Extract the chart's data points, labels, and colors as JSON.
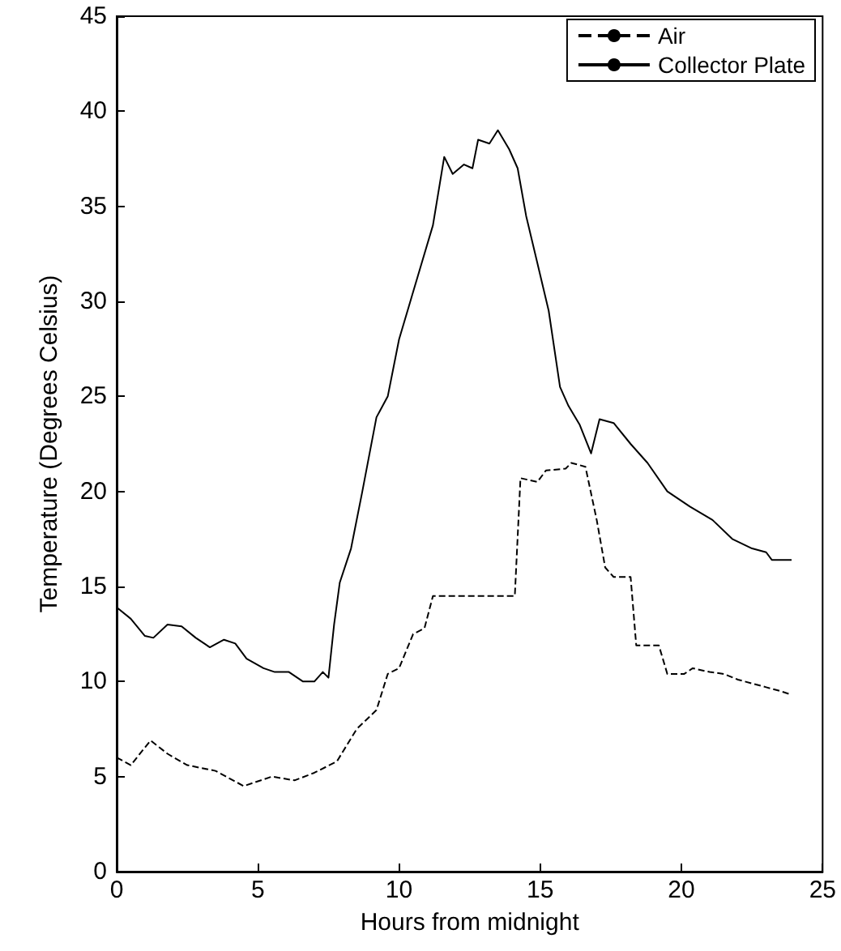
{
  "chart_data": {
    "type": "line",
    "xlabel": "Hours from midnight",
    "ylabel": "Temperature (Degrees Celsius)",
    "xlim": [
      0,
      25
    ],
    "xticks": [
      0,
      5,
      10,
      15,
      20,
      25
    ],
    "ylim": [
      0,
      45
    ],
    "yticks": [
      0,
      5,
      10,
      15,
      20,
      25,
      30,
      35,
      40,
      45
    ],
    "grid": false,
    "legend": "top right",
    "marker": "none",
    "series": [
      {
        "name": "Air",
        "color": "#000000",
        "line_style": "dashed",
        "x": [
          0,
          0.5,
          1.2,
          1.8,
          2.5,
          3.5,
          4.5,
          5.5,
          6.3,
          7.0,
          7.8,
          8.5,
          9.2,
          9.6,
          10.0,
          10.5,
          10.9,
          11.2,
          14.1,
          14.3,
          14.9,
          15.2,
          15.9,
          16.1,
          16.6,
          17.0,
          17.3,
          17.6,
          18.2,
          18.4,
          19.2,
          19.5,
          20.1,
          20.4,
          21.0,
          21.5,
          22.0,
          22.5,
          23.0,
          23.5,
          23.9
        ],
        "values": [
          6.0,
          5.6,
          6.9,
          6.2,
          5.6,
          5.3,
          4.5,
          5.0,
          4.8,
          5.2,
          5.8,
          7.5,
          8.5,
          10.4,
          10.7,
          12.5,
          12.8,
          14.5,
          14.5,
          20.7,
          20.5,
          21.1,
          21.2,
          21.5,
          21.3,
          18.5,
          16.0,
          15.5,
          15.5,
          11.9,
          11.9,
          10.4,
          10.4,
          10.7,
          10.5,
          10.4,
          10.1,
          9.9,
          9.7,
          9.5,
          9.3
        ]
      },
      {
        "name": "Collector Plate",
        "color": "#000000",
        "line_style": "solid",
        "x": [
          0,
          0.5,
          1.0,
          1.3,
          1.8,
          2.3,
          2.8,
          3.3,
          3.8,
          4.2,
          4.6,
          5.2,
          5.6,
          6.1,
          6.6,
          7.0,
          7.3,
          7.5,
          7.7,
          7.9,
          8.3,
          8.7,
          9.2,
          9.6,
          10.0,
          10.4,
          10.8,
          11.2,
          11.6,
          11.9,
          12.3,
          12.6,
          12.8,
          13.2,
          13.5,
          13.9,
          14.2,
          14.5,
          14.9,
          15.3,
          15.7,
          16.0,
          16.4,
          16.8,
          17.1,
          17.6,
          18.2,
          18.8,
          19.5,
          20.3,
          21.1,
          21.8,
          22.5,
          23.0,
          23.2,
          23.9
        ],
        "values": [
          13.9,
          13.3,
          12.4,
          12.3,
          13.0,
          12.9,
          12.3,
          11.8,
          12.2,
          12.0,
          11.2,
          10.7,
          10.5,
          10.5,
          10.0,
          10.0,
          10.5,
          10.2,
          13.0,
          15.2,
          17.0,
          20.0,
          23.9,
          25.0,
          28.0,
          30.0,
          32.0,
          34.0,
          37.6,
          36.7,
          37.2,
          37.0,
          38.5,
          38.3,
          39.0,
          38.0,
          37.0,
          34.5,
          32.0,
          29.5,
          25.5,
          24.5,
          23.5,
          22.0,
          23.8,
          23.6,
          22.5,
          21.5,
          20.0,
          19.2,
          18.5,
          17.5,
          17.0,
          16.8,
          16.4,
          16.4
        ]
      }
    ]
  }
}
